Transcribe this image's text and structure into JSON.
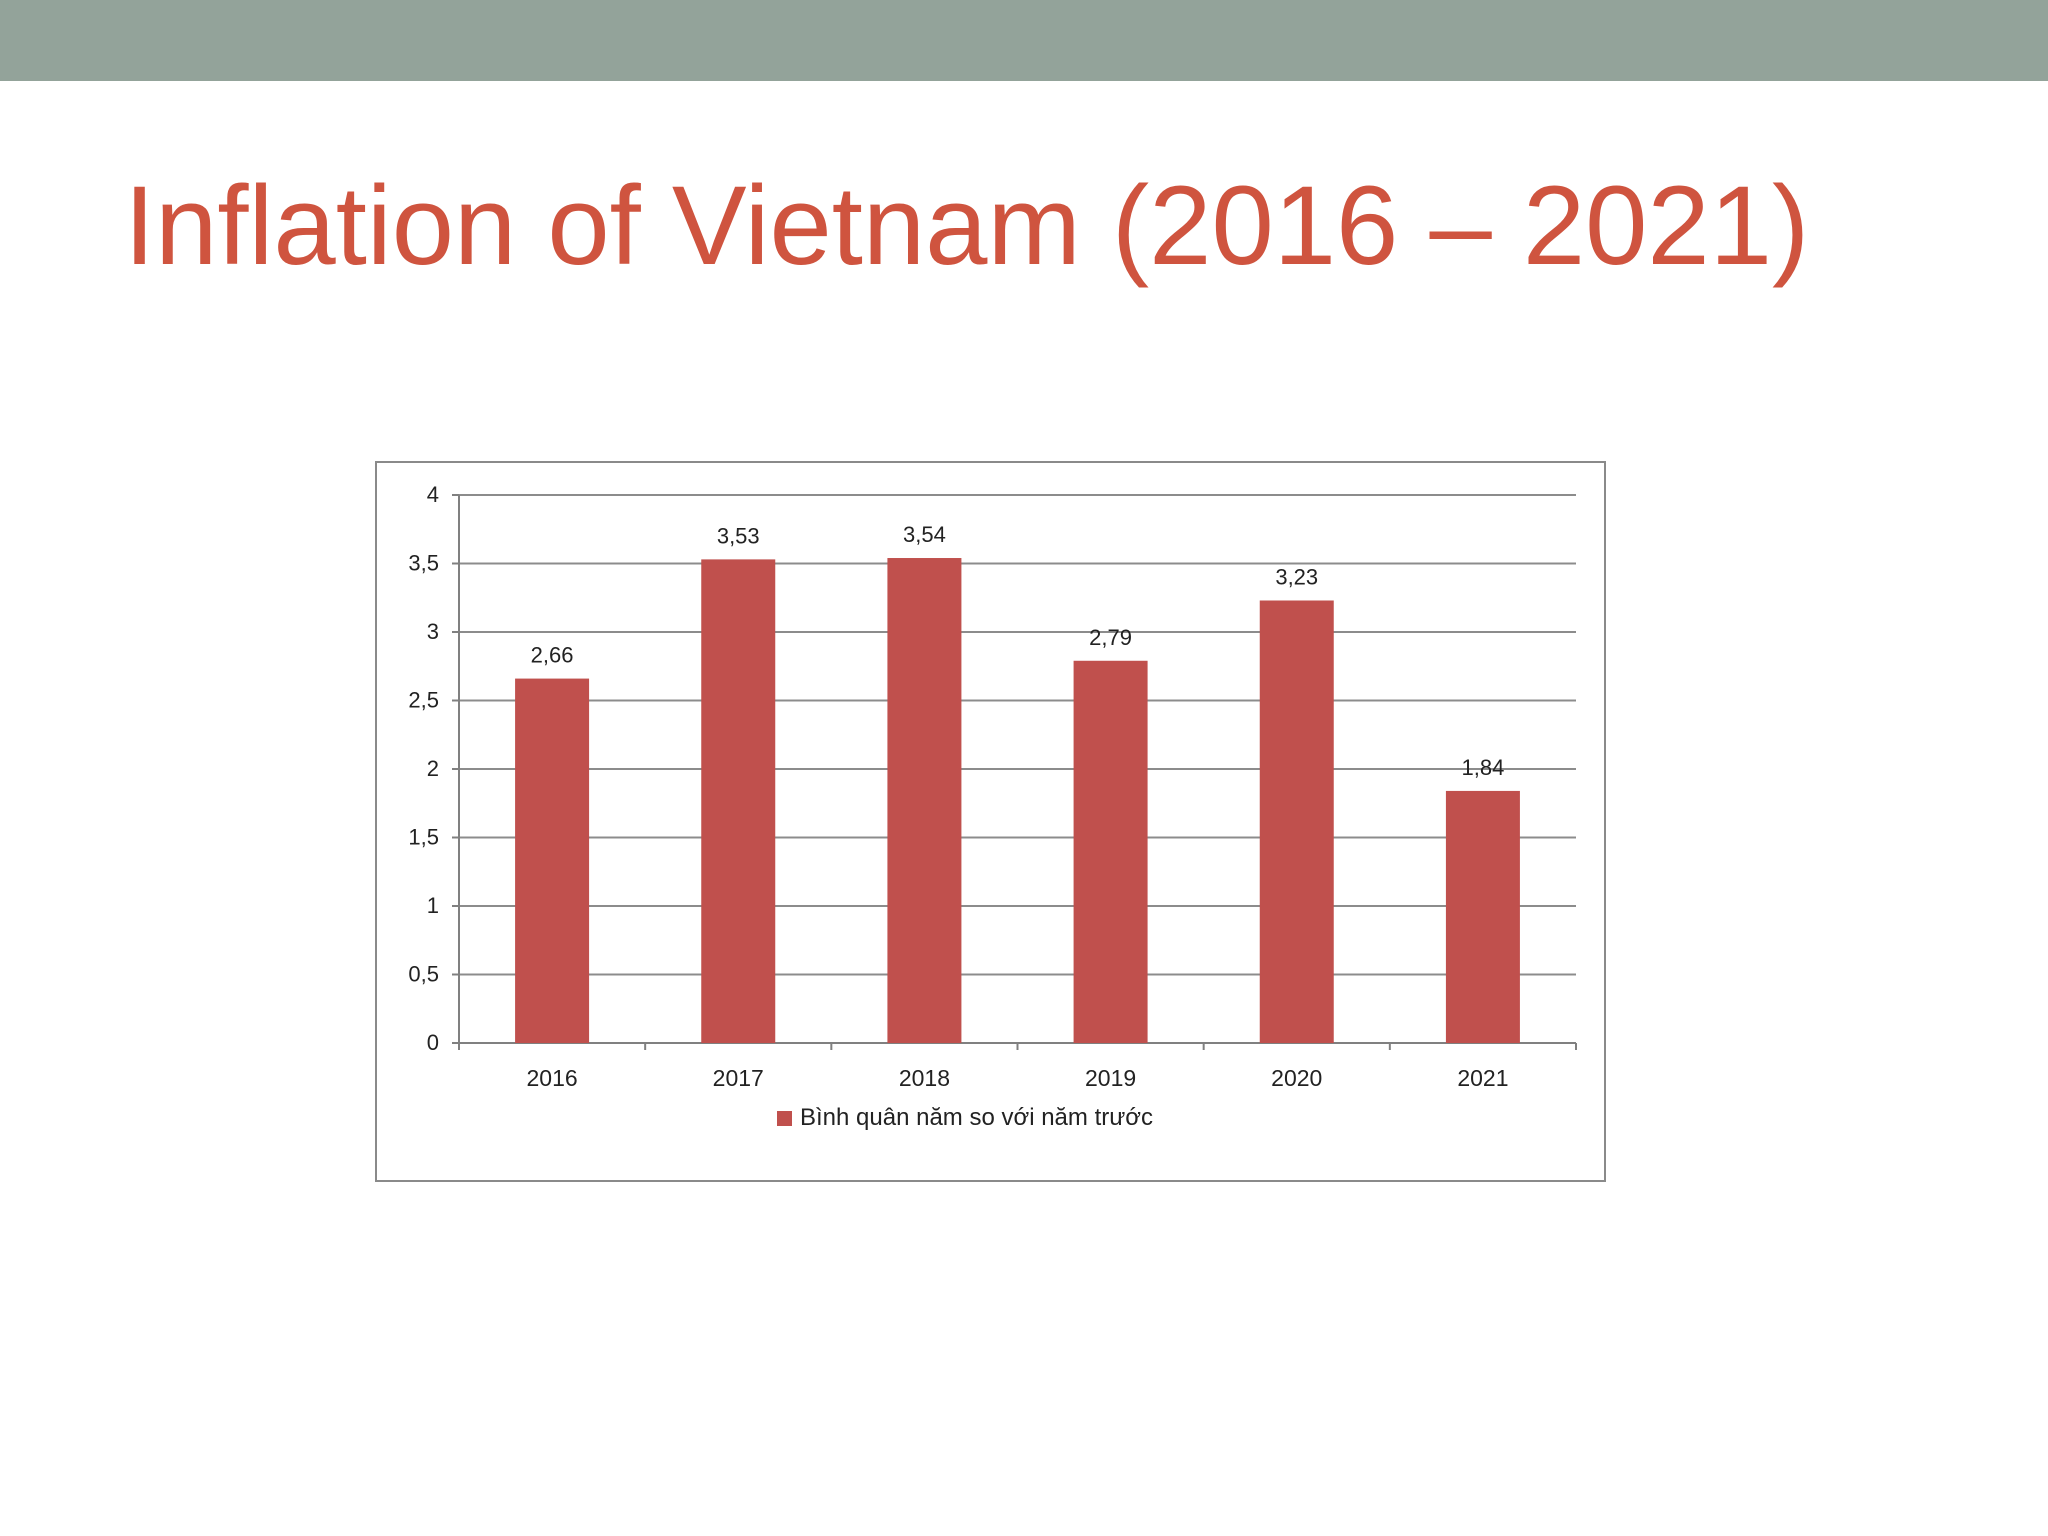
{
  "slide": {
    "title": "Inflation of Vietnam (2016 – 2021)"
  },
  "colors": {
    "top_bar": "#93a39a",
    "title": "#cf543f",
    "bar": "#c0504d",
    "gridline": "#8c8c8c",
    "axis": "#808080",
    "text": "#222222"
  },
  "chart_data": {
    "type": "bar",
    "categories": [
      "2016",
      "2017",
      "2018",
      "2019",
      "2020",
      "2021"
    ],
    "series": [
      {
        "name": "Bình quân năm so với năm trước",
        "values": [
          2.66,
          3.53,
          3.54,
          2.79,
          3.23,
          1.84
        ],
        "value_labels": [
          "2,66",
          "3,53",
          "3,54",
          "2,79",
          "3,23",
          "1,84"
        ]
      }
    ],
    "y_ticks": [
      0,
      0.5,
      1,
      1.5,
      2,
      2.5,
      3,
      3.5,
      4
    ],
    "y_tick_labels": [
      "0",
      "0,5",
      "1",
      "1,5",
      "2",
      "2,5",
      "3",
      "3,5",
      "4"
    ],
    "ylim": [
      0,
      4
    ],
    "grid": true,
    "legend_position": "bottom"
  }
}
